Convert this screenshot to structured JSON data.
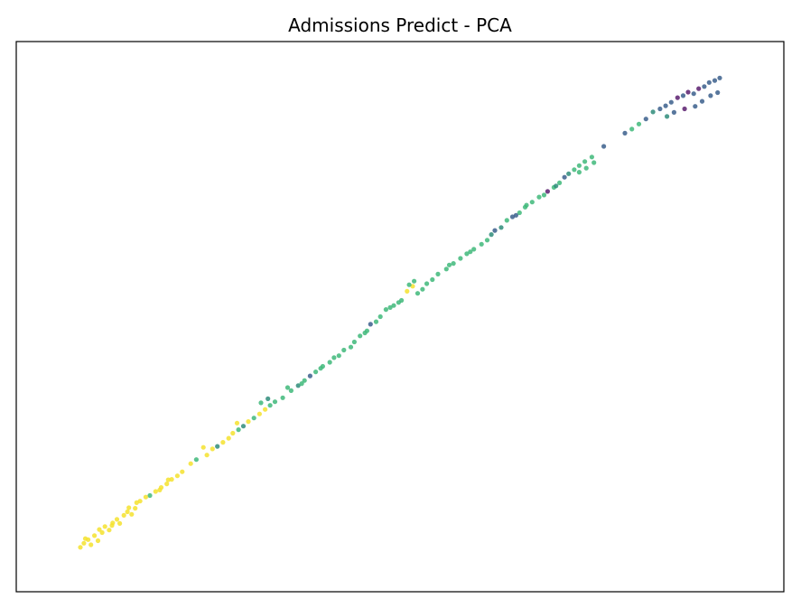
{
  "chart_data": {
    "type": "scatter",
    "title": "Admissions Predict - PCA",
    "xlabel": "",
    "ylabel": "",
    "xlim": [
      0,
      100
    ],
    "ylim": [
      0,
      100
    ],
    "x_ticks": "none",
    "y_ticks": "none",
    "grid": false,
    "legend": "none",
    "colormap": "viridis",
    "color_classes": {
      "purple": "#5a1e6e",
      "blue": "#3b5f8c",
      "teal": "#2f8c7a",
      "green": "#3fb87a",
      "yellow": "#f5e22e"
    },
    "points": [
      {
        "x": 4.5,
        "y": 4.5,
        "c": "yellow"
      },
      {
        "x": 5.0,
        "y": 5.3,
        "c": "yellow"
      },
      {
        "x": 5.6,
        "y": 6.0,
        "c": "yellow"
      },
      {
        "x": 6.0,
        "y": 5.0,
        "c": "yellow"
      },
      {
        "x": 6.5,
        "y": 6.8,
        "c": "yellow"
      },
      {
        "x": 7.0,
        "y": 5.8,
        "c": "yellow"
      },
      {
        "x": 7.6,
        "y": 7.4,
        "c": "yellow"
      },
      {
        "x": 8.0,
        "y": 8.6,
        "c": "yellow"
      },
      {
        "x": 8.6,
        "y": 7.9,
        "c": "yellow"
      },
      {
        "x": 9.1,
        "y": 9.3,
        "c": "yellow"
      },
      {
        "x": 9.7,
        "y": 10.0,
        "c": "yellow"
      },
      {
        "x": 10.1,
        "y": 9.2,
        "c": "yellow"
      },
      {
        "x": 10.7,
        "y": 10.8,
        "c": "yellow"
      },
      {
        "x": 11.2,
        "y": 11.5,
        "c": "yellow"
      },
      {
        "x": 11.8,
        "y": 11.0,
        "c": "yellow"
      },
      {
        "x": 12.3,
        "y": 12.2,
        "c": "yellow"
      },
      {
        "x": 13.0,
        "y": 13.6,
        "c": "yellow"
      },
      {
        "x": 14.4,
        "y": 14.7,
        "c": "green"
      },
      {
        "x": 15.2,
        "y": 15.5,
        "c": "yellow"
      },
      {
        "x": 16.0,
        "y": 16.3,
        "c": "yellow"
      },
      {
        "x": 16.8,
        "y": 17.0,
        "c": "yellow"
      },
      {
        "x": 17.5,
        "y": 17.9,
        "c": "yellow"
      },
      {
        "x": 18.3,
        "y": 18.6,
        "c": "yellow"
      },
      {
        "x": 19.0,
        "y": 19.4,
        "c": "yellow"
      },
      {
        "x": 20.2,
        "y": 21.0,
        "c": "yellow"
      },
      {
        "x": 21.0,
        "y": 21.8,
        "c": "green"
      },
      {
        "x": 22.5,
        "y": 22.7,
        "c": "yellow"
      },
      {
        "x": 23.3,
        "y": 23.9,
        "c": "yellow"
      },
      {
        "x": 24.0,
        "y": 24.4,
        "c": "teal"
      },
      {
        "x": 24.8,
        "y": 25.2,
        "c": "yellow"
      },
      {
        "x": 25.6,
        "y": 26.0,
        "c": "yellow"
      },
      {
        "x": 26.2,
        "y": 27.0,
        "c": "yellow"
      },
      {
        "x": 27.0,
        "y": 27.7,
        "c": "green"
      },
      {
        "x": 27.7,
        "y": 28.4,
        "c": "teal"
      },
      {
        "x": 28.4,
        "y": 29.3,
        "c": "yellow"
      },
      {
        "x": 29.2,
        "y": 30.0,
        "c": "green"
      },
      {
        "x": 30.0,
        "y": 30.8,
        "c": "yellow"
      },
      {
        "x": 30.8,
        "y": 31.7,
        "c": "yellow"
      },
      {
        "x": 31.5,
        "y": 32.5,
        "c": "green"
      },
      {
        "x": 32.2,
        "y": 33.2,
        "c": "green"
      },
      {
        "x": 33.3,
        "y": 34.0,
        "c": "green"
      },
      {
        "x": 34.5,
        "y": 35.4,
        "c": "green"
      },
      {
        "x": 35.5,
        "y": 36.4,
        "c": "teal"
      },
      {
        "x": 36.4,
        "y": 37.4,
        "c": "green"
      },
      {
        "x": 37.2,
        "y": 38.3,
        "c": "blue"
      },
      {
        "x": 38.0,
        "y": 39.1,
        "c": "green"
      },
      {
        "x": 39.0,
        "y": 40.2,
        "c": "green"
      },
      {
        "x": 40.0,
        "y": 41.0,
        "c": "green"
      },
      {
        "x": 41.3,
        "y": 42.3,
        "c": "green"
      },
      {
        "x": 42.0,
        "y": 43.4,
        "c": "green"
      },
      {
        "x": 43.5,
        "y": 45.0,
        "c": "green"
      },
      {
        "x": 44.3,
        "y": 46.2,
        "c": "green"
      },
      {
        "x": 45.0,
        "y": 46.8,
        "c": "green"
      },
      {
        "x": 45.8,
        "y": 48.5,
        "c": "blue"
      },
      {
        "x": 46.6,
        "y": 49.0,
        "c": "green"
      },
      {
        "x": 47.2,
        "y": 50.0,
        "c": "green"
      },
      {
        "x": 48.0,
        "y": 51.4,
        "c": "green"
      },
      {
        "x": 49.1,
        "y": 52.2,
        "c": "green"
      },
      {
        "x": 50.2,
        "y": 53.2,
        "c": "green"
      },
      {
        "x": 51.0,
        "y": 55.0,
        "c": "yellow"
      },
      {
        "x": 51.8,
        "y": 56.0,
        "c": "yellow"
      },
      {
        "x": 52.5,
        "y": 54.6,
        "c": "green"
      },
      {
        "x": 53.2,
        "y": 55.4,
        "c": "green"
      },
      {
        "x": 53.8,
        "y": 56.5,
        "c": "green"
      },
      {
        "x": 54.6,
        "y": 57.3,
        "c": "green"
      },
      {
        "x": 55.4,
        "y": 58.4,
        "c": "green"
      },
      {
        "x": 56.6,
        "y": 59.4,
        "c": "green"
      },
      {
        "x": 57.6,
        "y": 60.5,
        "c": "green"
      },
      {
        "x": 58.6,
        "y": 61.5,
        "c": "green"
      },
      {
        "x": 59.5,
        "y": 62.4,
        "c": "green"
      },
      {
        "x": 60.5,
        "y": 63.3,
        "c": "green"
      },
      {
        "x": 61.6,
        "y": 64.3,
        "c": "green"
      },
      {
        "x": 62.4,
        "y": 65.1,
        "c": "green"
      },
      {
        "x": 63.5,
        "y": 67.0,
        "c": "blue"
      },
      {
        "x": 64.4,
        "y": 67.6,
        "c": "teal"
      },
      {
        "x": 65.2,
        "y": 69.0,
        "c": "green"
      },
      {
        "x": 66.0,
        "y": 69.7,
        "c": "blue"
      },
      {
        "x": 67.0,
        "y": 70.5,
        "c": "green"
      },
      {
        "x": 67.8,
        "y": 71.6,
        "c": "green"
      },
      {
        "x": 68.8,
        "y": 72.6,
        "c": "green"
      },
      {
        "x": 69.8,
        "y": 73.6,
        "c": "green"
      },
      {
        "x": 71.0,
        "y": 74.7,
        "c": "purple"
      },
      {
        "x": 71.9,
        "y": 75.5,
        "c": "green"
      },
      {
        "x": 72.7,
        "y": 76.4,
        "c": "green"
      },
      {
        "x": 73.4,
        "y": 77.5,
        "c": "blue"
      },
      {
        "x": 74.0,
        "y": 78.2,
        "c": "teal"
      },
      {
        "x": 74.8,
        "y": 79.0,
        "c": "green"
      },
      {
        "x": 75.5,
        "y": 79.8,
        "c": "green"
      },
      {
        "x": 76.3,
        "y": 80.6,
        "c": "green"
      },
      {
        "x": 77.3,
        "y": 81.5,
        "c": "green"
      },
      {
        "x": 79.0,
        "y": 83.6,
        "c": "blue"
      },
      {
        "x": 82.0,
        "y": 86.2,
        "c": "blue"
      },
      {
        "x": 83.0,
        "y": 87.0,
        "c": "green"
      },
      {
        "x": 84.0,
        "y": 88.0,
        "c": "green"
      },
      {
        "x": 85.0,
        "y": 89.0,
        "c": "blue"
      },
      {
        "x": 86.0,
        "y": 90.4,
        "c": "teal"
      },
      {
        "x": 87.0,
        "y": 91.0,
        "c": "blue"
      },
      {
        "x": 87.8,
        "y": 91.6,
        "c": "blue"
      },
      {
        "x": 88.6,
        "y": 92.3,
        "c": "blue"
      },
      {
        "x": 89.5,
        "y": 93.2,
        "c": "purple"
      },
      {
        "x": 90.3,
        "y": 93.6,
        "c": "blue"
      },
      {
        "x": 91.0,
        "y": 94.3,
        "c": "purple"
      },
      {
        "x": 91.8,
        "y": 94.0,
        "c": "blue"
      },
      {
        "x": 92.5,
        "y": 95.0,
        "c": "purple"
      },
      {
        "x": 93.3,
        "y": 95.4,
        "c": "blue"
      },
      {
        "x": 94.0,
        "y": 96.2,
        "c": "blue"
      },
      {
        "x": 94.8,
        "y": 96.6,
        "c": "blue"
      },
      {
        "x": 95.5,
        "y": 97.1,
        "c": "blue"
      },
      {
        "x": 92.0,
        "y": 91.5,
        "c": "blue"
      },
      {
        "x": 93.0,
        "y": 92.5,
        "c": "blue"
      },
      {
        "x": 94.2,
        "y": 93.6,
        "c": "blue"
      },
      {
        "x": 95.2,
        "y": 94.2,
        "c": "blue"
      },
      {
        "x": 90.5,
        "y": 91.0,
        "c": "purple"
      },
      {
        "x": 89.0,
        "y": 90.3,
        "c": "blue"
      },
      {
        "x": 88.0,
        "y": 89.5,
        "c": "teal"
      },
      {
        "x": 75.5,
        "y": 78.5,
        "c": "green"
      },
      {
        "x": 76.5,
        "y": 79.3,
        "c": "green"
      },
      {
        "x": 77.6,
        "y": 80.4,
        "c": "green"
      },
      {
        "x": 52.0,
        "y": 57.0,
        "c": "green"
      },
      {
        "x": 51.3,
        "y": 56.3,
        "c": "green"
      },
      {
        "x": 30.2,
        "y": 33.0,
        "c": "green"
      },
      {
        "x": 31.2,
        "y": 33.8,
        "c": "teal"
      },
      {
        "x": 26.8,
        "y": 29.0,
        "c": "yellow"
      },
      {
        "x": 22.0,
        "y": 24.2,
        "c": "yellow"
      },
      {
        "x": 13.8,
        "y": 14.4,
        "c": "yellow"
      },
      {
        "x": 12.5,
        "y": 13.3,
        "c": "yellow"
      },
      {
        "x": 11.4,
        "y": 12.3,
        "c": "yellow"
      },
      {
        "x": 9.0,
        "y": 8.8,
        "c": "yellow"
      },
      {
        "x": 7.2,
        "y": 8.0,
        "c": "yellow"
      },
      {
        "x": 5.2,
        "y": 6.2,
        "c": "yellow"
      },
      {
        "x": 15.8,
        "y": 15.8,
        "c": "yellow"
      },
      {
        "x": 17.0,
        "y": 17.8,
        "c": "yellow"
      },
      {
        "x": 34.0,
        "y": 36.0,
        "c": "green"
      },
      {
        "x": 36.0,
        "y": 36.8,
        "c": "green"
      },
      {
        "x": 38.7,
        "y": 39.8,
        "c": "green"
      },
      {
        "x": 40.6,
        "y": 41.9,
        "c": "green"
      },
      {
        "x": 43.0,
        "y": 44.0,
        "c": "green"
      },
      {
        "x": 45.3,
        "y": 47.2,
        "c": "green"
      },
      {
        "x": 48.6,
        "y": 51.8,
        "c": "green"
      },
      {
        "x": 49.8,
        "y": 52.8,
        "c": "green"
      },
      {
        "x": 57.0,
        "y": 60.2,
        "c": "green"
      },
      {
        "x": 60.0,
        "y": 62.8,
        "c": "green"
      },
      {
        "x": 63.0,
        "y": 66.2,
        "c": "teal"
      },
      {
        "x": 66.5,
        "y": 70.0,
        "c": "blue"
      },
      {
        "x": 68.0,
        "y": 72.0,
        "c": "green"
      },
      {
        "x": 70.5,
        "y": 74.0,
        "c": "green"
      },
      {
        "x": 72.2,
        "y": 75.8,
        "c": "teal"
      }
    ]
  }
}
